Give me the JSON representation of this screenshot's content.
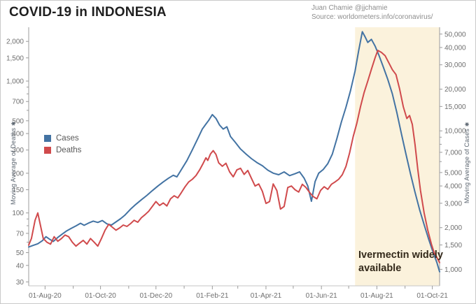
{
  "header": {
    "credit": "Juan Chamie @jjchamie",
    "source": "Source: worldometers.info/coronavirus/"
  },
  "annotation": {
    "line1": "Ivermectin widely",
    "line2": "available"
  },
  "icons": {
    "axis_marker": "✱"
  },
  "colors": {
    "cases": "#4373a3",
    "deaths": "#d04a4c",
    "shade": "#fbf2dc",
    "axis_line": "#9b9b9b",
    "baseline": "#c6c6c6",
    "tick_text": "#6e6e6e"
  },
  "chart_data": {
    "type": "line",
    "title": "COVID-19 in INDONESIA",
    "grid": false,
    "legend_position": "middle-left",
    "x_axis": {
      "start": "2020-07-14",
      "end": "2021-10-09",
      "major_ticks": [
        [
          "2020-08-01",
          "01-Aug-20"
        ],
        [
          "2020-10-01",
          "01-Oct-20"
        ],
        [
          "2020-12-01",
          "01-Dec-20"
        ],
        [
          "2021-02-01",
          "01-Feb-21"
        ],
        [
          "2021-04-01",
          "01-Apr-21"
        ],
        [
          "2021-06-01",
          "01-Jun-21"
        ],
        [
          "2021-08-01",
          "01-Aug-21"
        ],
        [
          "2021-10-01",
          "01-Oct-21"
        ]
      ],
      "minor_ticks": [
        "2020-09-01",
        "2020-11-01",
        "2021-01-01",
        "2021-03-01",
        "2021-05-01",
        "2021-07-01",
        "2021-09-01"
      ]
    },
    "y_left": {
      "label": "Moving Average of Deaths",
      "scale": "log",
      "domain": [
        28,
        2560
      ],
      "ticks": [
        30,
        40,
        50,
        70,
        100,
        150,
        200,
        300,
        400,
        500,
        700,
        1000,
        1500,
        2000
      ],
      "minor_ticks": [
        60,
        80,
        90,
        600,
        800,
        900
      ]
    },
    "y_right": {
      "label": "Moving Average of Cases",
      "scale": "log",
      "domain": [
        760,
        56000
      ],
      "ticks": [
        1000,
        1500,
        2000,
        3000,
        4000,
        5000,
        7000,
        10000,
        15000,
        20000,
        30000,
        40000,
        50000
      ],
      "minor_ticks": [
        6000,
        8000,
        9000
      ]
    },
    "shaded_region": {
      "start": "2021-07-08",
      "end": "2021-10-09",
      "color": "#fbf2dc",
      "label": "Ivermectin widely available"
    },
    "series": [
      {
        "name": "Cases",
        "axis": "right",
        "color": "#4373a3",
        "points": [
          [
            "2020-07-14",
            1450
          ],
          [
            "2020-07-19",
            1490
          ],
          [
            "2020-07-24",
            1530
          ],
          [
            "2020-07-29",
            1610
          ],
          [
            "2020-08-02",
            1720
          ],
          [
            "2020-08-06",
            1650
          ],
          [
            "2020-08-10",
            1590
          ],
          [
            "2020-08-15",
            1700
          ],
          [
            "2020-08-20",
            1800
          ],
          [
            "2020-08-25",
            1900
          ],
          [
            "2020-08-30",
            1980
          ],
          [
            "2020-09-04",
            2060
          ],
          [
            "2020-09-09",
            2150
          ],
          [
            "2020-09-13",
            2080
          ],
          [
            "2020-09-18",
            2160
          ],
          [
            "2020-09-23",
            2230
          ],
          [
            "2020-09-28",
            2180
          ],
          [
            "2020-10-03",
            2250
          ],
          [
            "2020-10-08",
            2130
          ],
          [
            "2020-10-13",
            2090
          ],
          [
            "2020-10-18",
            2200
          ],
          [
            "2020-10-23",
            2320
          ],
          [
            "2020-10-28",
            2470
          ],
          [
            "2020-11-03",
            2720
          ],
          [
            "2020-11-09",
            2950
          ],
          [
            "2020-11-15",
            3180
          ],
          [
            "2020-11-21",
            3420
          ],
          [
            "2020-11-27",
            3700
          ],
          [
            "2020-12-03",
            3990
          ],
          [
            "2020-12-09",
            4280
          ],
          [
            "2020-12-15",
            4560
          ],
          [
            "2020-12-20",
            4780
          ],
          [
            "2020-12-24",
            4650
          ],
          [
            "2020-12-29",
            5260
          ],
          [
            "2021-01-04",
            6100
          ],
          [
            "2021-01-10",
            7300
          ],
          [
            "2021-01-16",
            8800
          ],
          [
            "2021-01-21",
            10300
          ],
          [
            "2021-01-25",
            11200
          ],
          [
            "2021-01-28",
            11900
          ],
          [
            "2021-02-01",
            13100
          ],
          [
            "2021-02-05",
            12300
          ],
          [
            "2021-02-09",
            11000
          ],
          [
            "2021-02-13",
            10300
          ],
          [
            "2021-02-17",
            10700
          ],
          [
            "2021-02-21",
            9100
          ],
          [
            "2021-02-26",
            8300
          ],
          [
            "2021-03-04",
            7400
          ],
          [
            "2021-03-10",
            6800
          ],
          [
            "2021-03-16",
            6300
          ],
          [
            "2021-03-22",
            5900
          ],
          [
            "2021-03-28",
            5600
          ],
          [
            "2021-04-03",
            5200
          ],
          [
            "2021-04-09",
            4950
          ],
          [
            "2021-04-15",
            4820
          ],
          [
            "2021-04-21",
            5050
          ],
          [
            "2021-04-27",
            4750
          ],
          [
            "2021-05-03",
            4900
          ],
          [
            "2021-05-08",
            5060
          ],
          [
            "2021-05-13",
            4550
          ],
          [
            "2021-05-17",
            4000
          ],
          [
            "2021-05-21",
            3100
          ],
          [
            "2021-05-25",
            4300
          ],
          [
            "2021-05-29",
            4950
          ],
          [
            "2021-06-03",
            5260
          ],
          [
            "2021-06-08",
            5800
          ],
          [
            "2021-06-13",
            6800
          ],
          [
            "2021-06-18",
            8800
          ],
          [
            "2021-06-23",
            11600
          ],
          [
            "2021-06-28",
            14800
          ],
          [
            "2021-07-03",
            19500
          ],
          [
            "2021-07-08",
            27000
          ],
          [
            "2021-07-12",
            38000
          ],
          [
            "2021-07-16",
            52000
          ],
          [
            "2021-07-19",
            47800
          ],
          [
            "2021-07-22",
            43500
          ],
          [
            "2021-07-26",
            45800
          ],
          [
            "2021-07-30",
            41000
          ],
          [
            "2021-08-03",
            35500
          ],
          [
            "2021-08-08",
            29000
          ],
          [
            "2021-08-13",
            23500
          ],
          [
            "2021-08-18",
            18500
          ],
          [
            "2021-08-23",
            13500
          ],
          [
            "2021-08-28",
            9500
          ],
          [
            "2021-09-02",
            6800
          ],
          [
            "2021-09-07",
            4900
          ],
          [
            "2021-09-12",
            3600
          ],
          [
            "2021-09-17",
            2700
          ],
          [
            "2021-09-22",
            2100
          ],
          [
            "2021-09-27",
            1650
          ],
          [
            "2021-10-02",
            1320
          ],
          [
            "2021-10-06",
            1120
          ],
          [
            "2021-10-09",
            960
          ]
        ]
      },
      {
        "name": "Deaths",
        "axis": "left",
        "color": "#d04a4c",
        "points": [
          [
            "2020-07-14",
            57
          ],
          [
            "2020-07-17",
            64
          ],
          [
            "2020-07-21",
            88
          ],
          [
            "2020-07-24",
            100
          ],
          [
            "2020-07-27",
            80
          ],
          [
            "2020-07-30",
            64
          ],
          [
            "2020-08-03",
            60
          ],
          [
            "2020-08-07",
            58
          ],
          [
            "2020-08-11",
            66
          ],
          [
            "2020-08-15",
            61
          ],
          [
            "2020-08-19",
            64
          ],
          [
            "2020-08-23",
            68
          ],
          [
            "2020-08-27",
            66
          ],
          [
            "2020-08-31",
            60
          ],
          [
            "2020-09-04",
            56
          ],
          [
            "2020-09-08",
            59
          ],
          [
            "2020-09-12",
            62
          ],
          [
            "2020-09-16",
            58
          ],
          [
            "2020-09-20",
            64
          ],
          [
            "2020-09-24",
            60
          ],
          [
            "2020-09-28",
            56
          ],
          [
            "2020-10-02",
            64
          ],
          [
            "2020-10-06",
            74
          ],
          [
            "2020-10-10",
            82
          ],
          [
            "2020-10-14",
            78
          ],
          [
            "2020-10-18",
            74
          ],
          [
            "2020-10-22",
            77
          ],
          [
            "2020-10-26",
            81
          ],
          [
            "2020-10-30",
            79
          ],
          [
            "2020-11-03",
            83
          ],
          [
            "2020-11-07",
            88
          ],
          [
            "2020-11-11",
            85
          ],
          [
            "2020-11-15",
            92
          ],
          [
            "2020-11-19",
            97
          ],
          [
            "2020-11-23",
            103
          ],
          [
            "2020-11-27",
            112
          ],
          [
            "2020-12-01",
            122
          ],
          [
            "2020-12-05",
            114
          ],
          [
            "2020-12-09",
            119
          ],
          [
            "2020-12-13",
            113
          ],
          [
            "2020-12-17",
            128
          ],
          [
            "2020-12-21",
            135
          ],
          [
            "2020-12-25",
            130
          ],
          [
            "2020-12-29",
            143
          ],
          [
            "2021-01-02",
            158
          ],
          [
            "2021-01-06",
            172
          ],
          [
            "2021-01-10",
            180
          ],
          [
            "2021-01-14",
            192
          ],
          [
            "2021-01-18",
            212
          ],
          [
            "2021-01-22",
            238
          ],
          [
            "2021-01-25",
            262
          ],
          [
            "2021-01-27",
            250
          ],
          [
            "2021-01-30",
            280
          ],
          [
            "2021-02-02",
            297
          ],
          [
            "2021-02-05",
            278
          ],
          [
            "2021-02-08",
            240
          ],
          [
            "2021-02-12",
            226
          ],
          [
            "2021-02-16",
            238
          ],
          [
            "2021-02-20",
            205
          ],
          [
            "2021-02-24",
            188
          ],
          [
            "2021-02-28",
            212
          ],
          [
            "2021-03-04",
            218
          ],
          [
            "2021-03-08",
            196
          ],
          [
            "2021-03-12",
            210
          ],
          [
            "2021-03-16",
            183
          ],
          [
            "2021-03-20",
            160
          ],
          [
            "2021-03-24",
            166
          ],
          [
            "2021-03-28",
            146
          ],
          [
            "2021-04-01",
            118
          ],
          [
            "2021-04-05",
            122
          ],
          [
            "2021-04-09",
            166
          ],
          [
            "2021-04-13",
            148
          ],
          [
            "2021-04-17",
            107
          ],
          [
            "2021-04-21",
            112
          ],
          [
            "2021-04-25",
            156
          ],
          [
            "2021-04-29",
            160
          ],
          [
            "2021-05-03",
            150
          ],
          [
            "2021-05-07",
            144
          ],
          [
            "2021-05-11",
            165
          ],
          [
            "2021-05-15",
            156
          ],
          [
            "2021-05-19",
            143
          ],
          [
            "2021-05-23",
            133
          ],
          [
            "2021-05-27",
            128
          ],
          [
            "2021-05-31",
            148
          ],
          [
            "2021-06-04",
            158
          ],
          [
            "2021-06-08",
            151
          ],
          [
            "2021-06-12",
            165
          ],
          [
            "2021-06-16",
            172
          ],
          [
            "2021-06-20",
            180
          ],
          [
            "2021-06-24",
            195
          ],
          [
            "2021-06-28",
            225
          ],
          [
            "2021-07-02",
            285
          ],
          [
            "2021-07-06",
            380
          ],
          [
            "2021-07-10",
            480
          ],
          [
            "2021-07-14",
            640
          ],
          [
            "2021-07-18",
            820
          ],
          [
            "2021-07-22",
            1000
          ],
          [
            "2021-07-26",
            1230
          ],
          [
            "2021-07-30",
            1500
          ],
          [
            "2021-08-02",
            1710
          ],
          [
            "2021-08-06",
            1650
          ],
          [
            "2021-08-10",
            1560
          ],
          [
            "2021-08-14",
            1380
          ],
          [
            "2021-08-18",
            1220
          ],
          [
            "2021-08-22",
            1120
          ],
          [
            "2021-08-26",
            870
          ],
          [
            "2021-08-30",
            640
          ],
          [
            "2021-09-03",
            520
          ],
          [
            "2021-09-06",
            548
          ],
          [
            "2021-09-09",
            470
          ],
          [
            "2021-09-12",
            330
          ],
          [
            "2021-09-15",
            215
          ],
          [
            "2021-09-18",
            148
          ],
          [
            "2021-09-22",
            100
          ],
          [
            "2021-09-26",
            74
          ],
          [
            "2021-09-30",
            58
          ],
          [
            "2021-10-03",
            50
          ],
          [
            "2021-10-06",
            46
          ],
          [
            "2021-10-09",
            42
          ]
        ]
      }
    ]
  }
}
